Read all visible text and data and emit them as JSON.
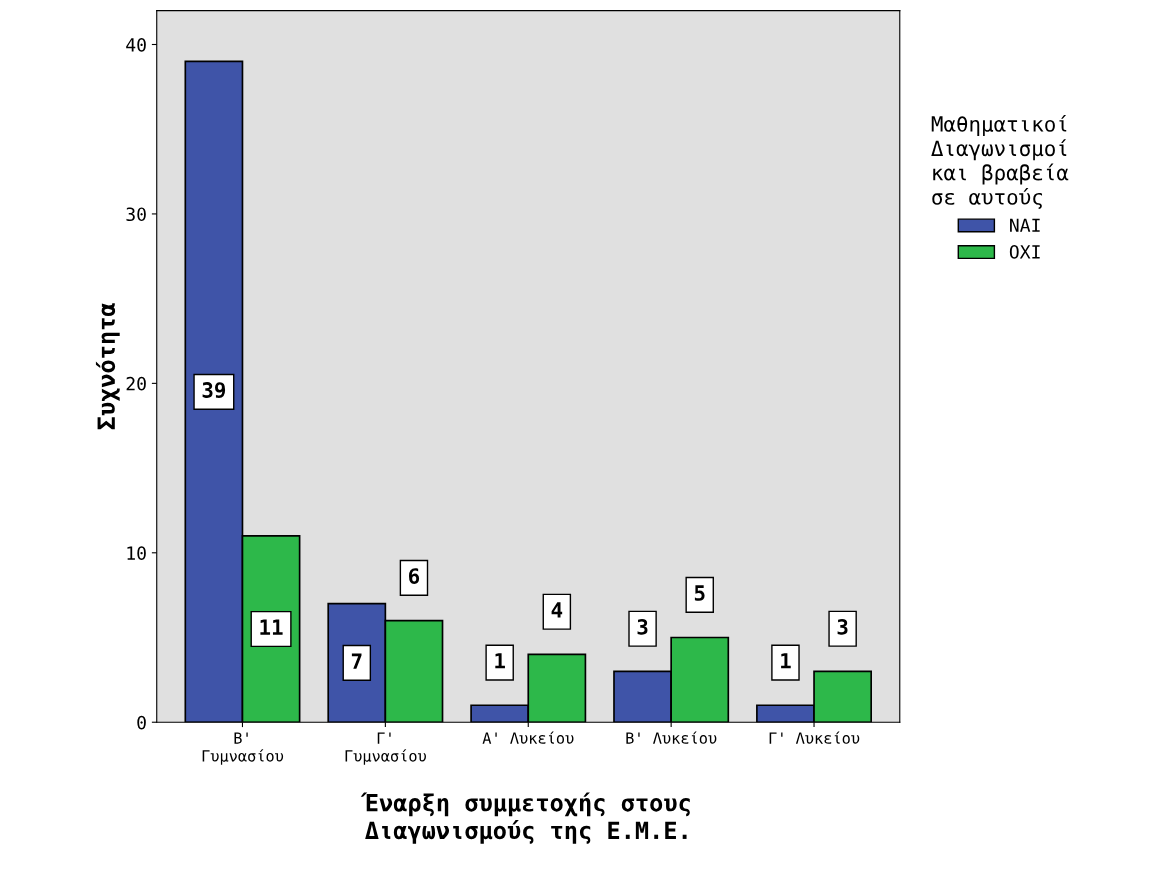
{
  "chart_data": {
    "type": "bar",
    "xlabel": "Έναρξη συμμετοχής στους\nΔιαγωνισμούς της Ε.Μ.Ε.",
    "ylabel": "Συχνότητα",
    "legend_title": "Μαθηματικοί\nΔιαγωνισμοί\nκαι βραβεία\nσε αυτούς",
    "categories": [
      "Β'\nΓυμνασίου",
      "Γ'\nΓυμνασίου",
      "Α' Λυκείου",
      "Β' Λυκείου",
      "Γ' Λυκείου"
    ],
    "series": [
      {
        "name": "ΝΑΙ",
        "color": "#3f54a8",
        "values": [
          39,
          7,
          1,
          3,
          1
        ]
      },
      {
        "name": "ΟΧΙ",
        "color": "#2db84a",
        "values": [
          11,
          6,
          4,
          5,
          3
        ]
      }
    ],
    "ylim": [
      0,
      42
    ],
    "yticks": [
      0,
      10,
      20,
      30,
      40
    ],
    "grid": false,
    "legend": "right",
    "data_labels": true
  }
}
